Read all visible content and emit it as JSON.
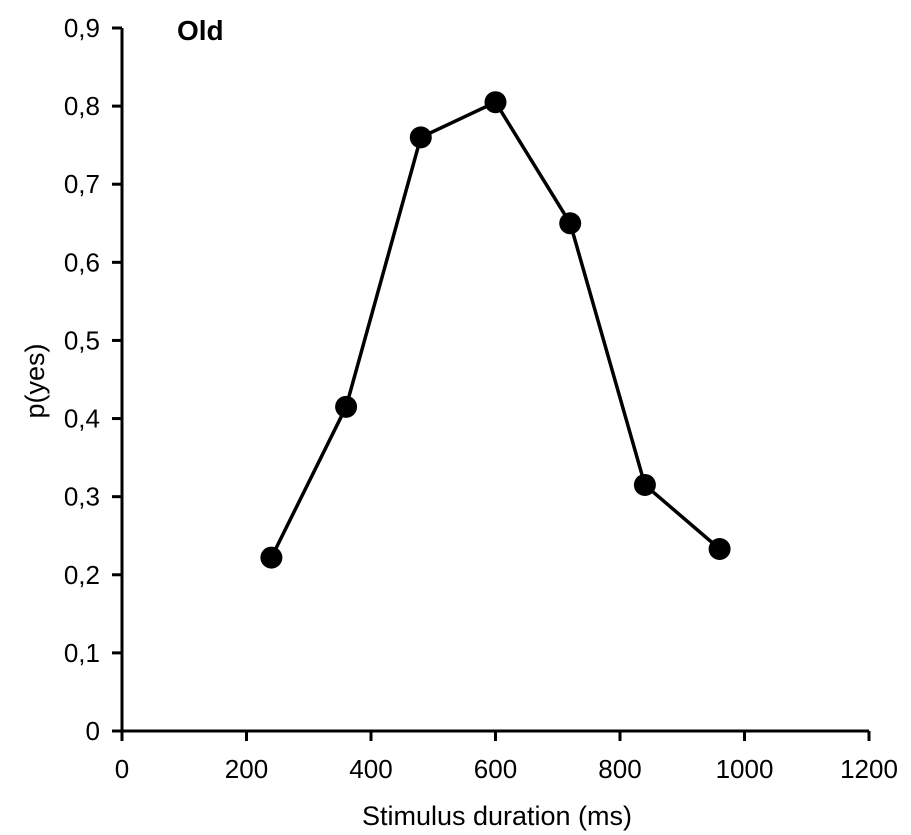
{
  "chart_data": {
    "type": "line",
    "title": "Old",
    "xlabel": "Stimulus duration (ms)",
    "ylabel": "p(yes)",
    "xlim": [
      0,
      1200
    ],
    "ylim": [
      0,
      0.9
    ],
    "x_ticks": [
      0,
      200,
      400,
      600,
      800,
      1000,
      1200
    ],
    "x_tick_labels": [
      "0",
      "200",
      "400",
      "600",
      "800",
      "1000",
      "1200"
    ],
    "y_ticks": [
      0,
      0.1,
      0.2,
      0.3,
      0.4,
      0.5,
      0.6,
      0.7,
      0.8,
      0.9
    ],
    "y_tick_labels": [
      "0",
      "0,1",
      "0,2",
      "0,3",
      "0,4",
      "0,5",
      "0,6",
      "0,7",
      "0,8",
      "0,9"
    ],
    "grid": false,
    "legend": "none",
    "series": [
      {
        "x": [
          240,
          360,
          480,
          600,
          720,
          840,
          960
        ],
        "y": [
          0.222,
          0.415,
          0.76,
          0.805,
          0.65,
          0.315,
          0.233
        ],
        "color": "#000000",
        "marker": "circle"
      }
    ]
  }
}
